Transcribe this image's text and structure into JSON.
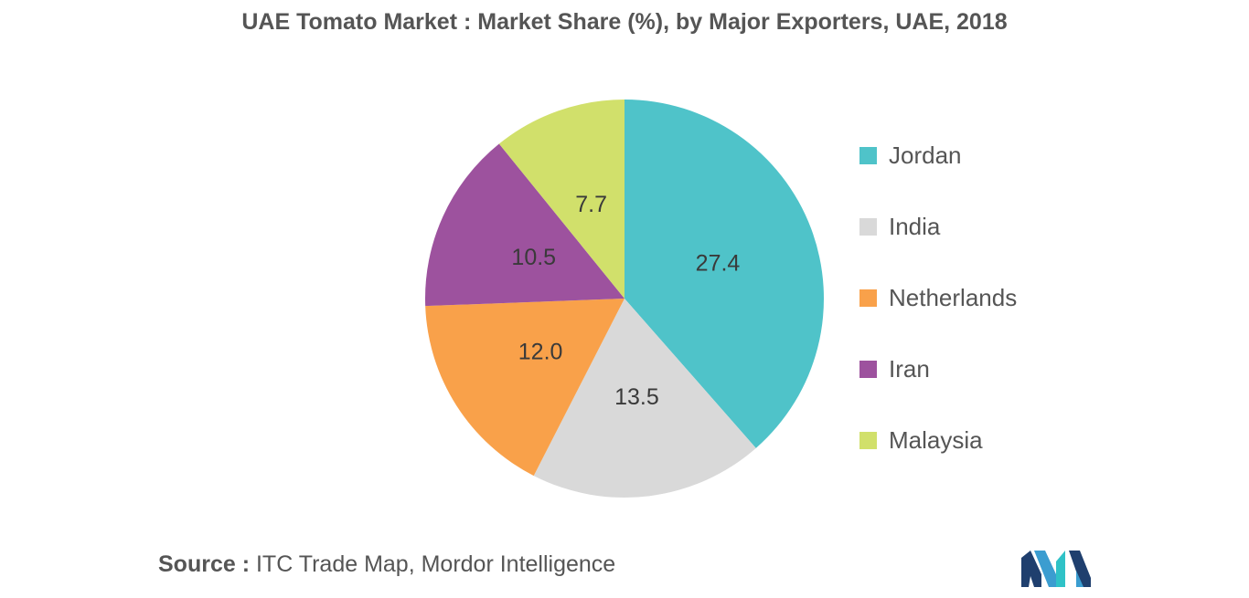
{
  "chart": {
    "title": "UAE Tomato Market : Market Share (%), by Major Exporters, UAE, 2018"
  },
  "source": {
    "prefix": "Source :",
    "text": "ITC Trade Map, Mordor Intelligence"
  },
  "chart_data": {
    "type": "pie",
    "title": "UAE Tomato Market : Market Share (%), by Major Exporters, UAE, 2018",
    "legend_position": "right",
    "slices": [
      {
        "label": "Jordan",
        "value": 27.4,
        "display": "27.4",
        "color": "#4fc3c9"
      },
      {
        "label": "India",
        "value": 13.5,
        "display": "13.5",
        "color": "#d9d9d9"
      },
      {
        "label": "Netherlands",
        "value": 12.0,
        "display": "12.0",
        "color": "#f9a14a"
      },
      {
        "label": "Iran",
        "value": 10.5,
        "display": "10.5",
        "color": "#9d529e"
      },
      {
        "label": "Malaysia",
        "value": 7.7,
        "display": "7.7",
        "color": "#d1e06b"
      }
    ]
  }
}
